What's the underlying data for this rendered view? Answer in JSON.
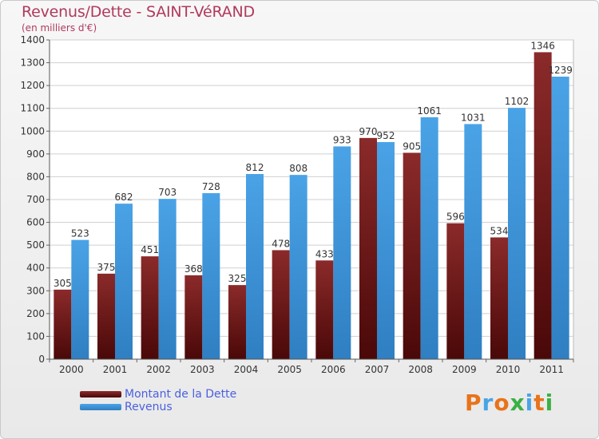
{
  "header": {
    "title": "Revenus/Dette - SAINT-VéRAND",
    "subtitle": "(en milliers d'€)"
  },
  "colors": {
    "debt": "#8b2a2a",
    "debt_dark": "#4a0808",
    "revenue": "#4aa3e6",
    "revenue_dark": "#2f7fc2",
    "grid": "#cfcfcf",
    "axis_text": "#333333"
  },
  "chart_data": {
    "type": "bar",
    "title": "Revenus/Dette - SAINT-VéRAND",
    "subtitle": "(en milliers d'€)",
    "categories": [
      "2000",
      "2001",
      "2002",
      "2003",
      "2004",
      "2005",
      "2006",
      "2007",
      "2008",
      "2009",
      "2010",
      "2011"
    ],
    "series": [
      {
        "name": "Montant de la Dette",
        "values": [
          305,
          375,
          451,
          368,
          325,
          478,
          433,
          970,
          905,
          596,
          534,
          1346
        ]
      },
      {
        "name": "Revenus",
        "values": [
          523,
          682,
          703,
          728,
          812,
          808,
          933,
          952,
          1061,
          1031,
          1102,
          1239
        ]
      }
    ],
    "ylim": [
      0,
      1400
    ],
    "yticks": [
      0,
      100,
      200,
      300,
      400,
      500,
      600,
      700,
      800,
      900,
      1000,
      1100,
      1200,
      1300,
      1400
    ],
    "grid": true,
    "legend": "bottom-left"
  },
  "legend": {
    "items": [
      "Montant de la Dette",
      "Revenus"
    ]
  },
  "logo": {
    "letters": [
      "P",
      "r",
      "o",
      "x",
      "i",
      "t",
      "i"
    ],
    "colors": [
      "#e8731a",
      "#4aa3e6",
      "#e8731a",
      "#3cb043",
      "#4aa3e6",
      "#e8731a",
      "#3cb043"
    ]
  }
}
